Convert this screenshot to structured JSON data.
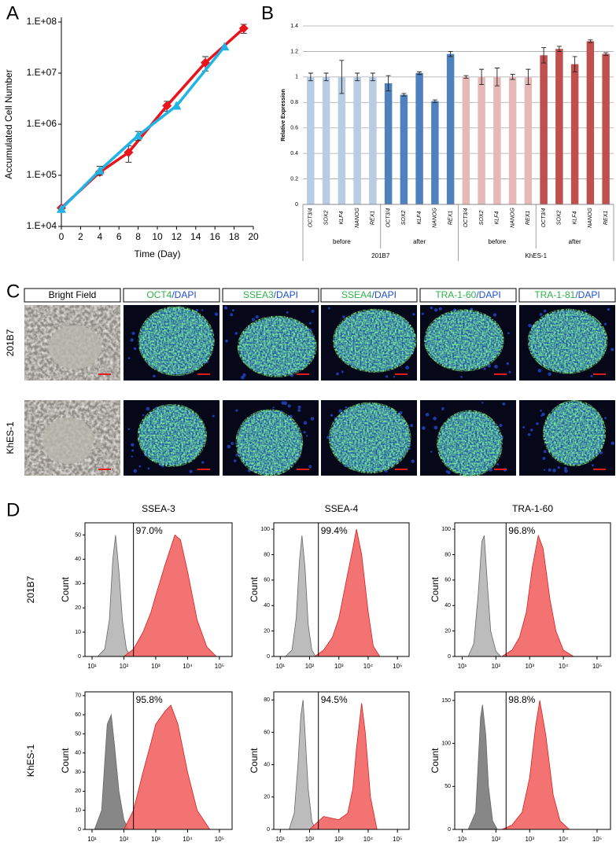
{
  "chart_data": [
    {
      "type": "line",
      "panel": "A",
      "x_label": "Time (Day)",
      "y_label": "Accumulated Cell Number",
      "log_y": true,
      "xlim": [
        0,
        20
      ],
      "xticks": [
        0,
        2,
        4,
        6,
        8,
        10,
        12,
        14,
        16,
        18,
        20
      ],
      "ylim": [
        10000,
        100000000
      ],
      "yticks": [
        {
          "value": 10000,
          "label": "1.E+04"
        },
        {
          "value": 100000,
          "label": "1.E+05"
        },
        {
          "value": 1000000,
          "label": "1.E+06"
        },
        {
          "value": 10000000,
          "label": "1.E+07"
        },
        {
          "value": 100000000,
          "label": "1.E+08"
        }
      ],
      "series": [
        {
          "color": "#e8141c",
          "marker": "diamond",
          "x": [
            0,
            4,
            7,
            11,
            15,
            19
          ],
          "values": [
            23000,
            115000,
            280000,
            2300000,
            16000000,
            75000000
          ],
          "errors": [
            null,
            null,
            100000,
            500000,
            5000000,
            15000000
          ]
        },
        {
          "color": "#1fb4e6",
          "marker": "triangle",
          "x": [
            0,
            4,
            8,
            12,
            17
          ],
          "values": [
            22000,
            125000,
            600000,
            2300000,
            33000000
          ],
          "errors": [
            null,
            25000,
            120000,
            null,
            null
          ]
        }
      ]
    },
    {
      "type": "bar",
      "panel": "B",
      "y_label": "Relative Expression",
      "ylim": [
        0,
        1.4
      ],
      "yticks": [
        0,
        0.2,
        0.4,
        0.6,
        0.8,
        1,
        1.2,
        1.4
      ],
      "grid": true,
      "categories": [
        "OCT3/4",
        "SOX2",
        "KLF4",
        "NANOG",
        "REX1"
      ],
      "groups": [
        {
          "label": "201B7",
          "subgroups": [
            "before",
            "after"
          ]
        },
        {
          "label": "KhES-1",
          "subgroups": [
            "before",
            "after"
          ]
        }
      ],
      "series": [
        {
          "color": "#b8cce4",
          "values": [
            1,
            1,
            1,
            1,
            1
          ],
          "errors": [
            0.03,
            0.03,
            0.13,
            0.03,
            0.03
          ]
        },
        {
          "color": "#4f81bd",
          "values": [
            0.95,
            0.86,
            1.03,
            0.81,
            1.18
          ],
          "errors": [
            0.06,
            0.01,
            0.01,
            0.01,
            0.02
          ]
        },
        {
          "color": "#e6b9b8",
          "values": [
            1,
            1,
            1,
            1,
            1
          ],
          "errors": [
            0.01,
            0.06,
            0.07,
            0.02,
            0.06
          ]
        },
        {
          "color": "#c0504d",
          "values": [
            1.17,
            1.22,
            1.1,
            1.28,
            1.18
          ],
          "errors": [
            0.06,
            0.02,
            0.06,
            0.01,
            0.01
          ]
        }
      ]
    },
    {
      "type": "image_grid",
      "panel": "C",
      "marker_color": "#2db34a",
      "stain_color": "#1f4fd0",
      "rows": [
        "201B7",
        "KhES-1"
      ],
      "columns": [
        {
          "label": "Bright Field"
        },
        {
          "marker": "OCT4",
          "stain": "/DAPI"
        },
        {
          "marker": "SSEA3",
          "stain": "/DAPI"
        },
        {
          "marker": "SSEA4",
          "stain": "/DAPI"
        },
        {
          "marker": "TRA-1-60",
          "stain": "/DAPI"
        },
        {
          "marker": "TRA-1-81",
          "stain": "/DAPI"
        }
      ]
    },
    {
      "type": "flow_histograms",
      "panel": "D",
      "y_label": "Count",
      "columns": [
        "SSEA-3",
        "SSEA-4",
        "TRA-1-60"
      ],
      "rows": [
        "201B7",
        "KhES-1"
      ],
      "xlim": [
        6,
        250000
      ],
      "xticks": [
        {
          "value": 10,
          "label": "10¹"
        },
        {
          "value": 100,
          "label": "10²"
        },
        {
          "value": 1000,
          "label": "10³"
        },
        {
          "value": 10000,
          "label": "10⁴"
        },
        {
          "value": 100000,
          "label": "10⁵"
        }
      ],
      "plots": [
        [
          {
            "ylim": [
              0,
              55
            ],
            "yticks": [
              0,
              10,
              20,
              30,
              40,
              50
            ],
            "gate": 200,
            "values": [
              97.0
            ],
            "value_labels": [
              "97.0%"
            ],
            "series": [
              {
                "color": "#b5b5b5",
                "x": [
                  15,
                  25,
                  35,
                  45,
                  55,
                  70,
                  90,
                  120,
                  160
                ],
                "values": [
                  0,
                  3,
                  15,
                  40,
                  50,
                  35,
                  15,
                  3,
                  0
                ]
              },
              {
                "color": "#f26464",
                "x": [
                  100,
                  200,
                  400,
                  700,
                  1000,
                  2000,
                  4000,
                  6000,
                  10000,
                  20000,
                  40000,
                  80000
                ],
                "values": [
                  0,
                  3,
                  10,
                  18,
                  25,
                  38,
                  50,
                  48,
                  35,
                  15,
                  4,
                  0
                ]
              }
            ]
          },
          {
            "ylim": [
              0,
              105
            ],
            "yticks": [
              0,
              20,
              40,
              60,
              80,
              100
            ],
            "gate": 200,
            "values": [
              99.4
            ],
            "value_labels": [
              "99.4%"
            ],
            "series": [
              {
                "color": "#b5b5b5",
                "x": [
                  15,
                  25,
                  35,
                  45,
                  55,
                  70,
                  90,
                  120,
                  160
                ],
                "values": [
                  0,
                  5,
                  30,
                  75,
                  95,
                  70,
                  25,
                  5,
                  0
                ]
              },
              {
                "color": "#f26464",
                "x": [
                  150,
                  300,
                  600,
                  1000,
                  2000,
                  3000,
                  4000,
                  6000,
                  10000,
                  15000,
                  25000
                ],
                "values": [
                  0,
                  5,
                  15,
                  30,
                  65,
                  85,
                  100,
                  80,
                  35,
                  8,
                  0
                ]
              }
            ]
          },
          {
            "ylim": [
              0,
              105
            ],
            "yticks": [
              0,
              20,
              40,
              60,
              80,
              100
            ],
            "gate": 200,
            "values": [
              96.8
            ],
            "value_labels": [
              "96.8%"
            ],
            "series": [
              {
                "color": "#b5b5b5",
                "x": [
                  15,
                  22,
                  30,
                  38,
                  45,
                  55,
                  70,
                  100,
                  140
                ],
                "values": [
                  0,
                  10,
                  50,
                  90,
                  95,
                  60,
                  20,
                  4,
                  0
                ]
              },
              {
                "color": "#f26464",
                "x": [
                  150,
                  300,
                  500,
                  800,
                  1200,
                  1800,
                  2500,
                  4000,
                  6000,
                  10000,
                  20000
                ],
                "values": [
                  0,
                  5,
                  15,
                  35,
                  70,
                  95,
                  85,
                  45,
                  20,
                  5,
                  0
                ]
              }
            ]
          }
        ],
        [
          {
            "ylim": [
              0,
              72
            ],
            "yticks": [
              0,
              10,
              20,
              30,
              40,
              50,
              60,
              70
            ],
            "gate": 200,
            "values": [
              95.8
            ],
            "value_labels": [
              "95.8%"
            ],
            "series": [
              {
                "color": "#7a7a7a",
                "x": [
                  12,
                  20,
                  25,
                  30,
                  40,
                  50,
                  70,
                  100,
                  140
                ],
                "values": [
                  0,
                  10,
                  35,
                  55,
                  60,
                  45,
                  20,
                  5,
                  0
                ]
              },
              {
                "color": "#f26464",
                "x": [
                  100,
                  200,
                  400,
                  700,
                  1000,
                  2000,
                  3000,
                  5000,
                  10000,
                  20000,
                  50000
                ],
                "values": [
                  0,
                  10,
                  30,
                  45,
                  55,
                  62,
                  65,
                  55,
                  30,
                  10,
                  0
                ]
              }
            ]
          },
          {
            "ylim": [
              0,
              85
            ],
            "yticks": [
              0,
              20,
              40,
              60,
              80
            ],
            "gate": 200,
            "values": [
              94.5
            ],
            "value_labels": [
              "94.5%"
            ],
            "series": [
              {
                "color": "#b5b5b5",
                "x": [
                  20,
                  30,
                  40,
                  50,
                  60,
                  70,
                  90,
                  120,
                  160
                ],
                "values": [
                  0,
                  10,
                  40,
                  70,
                  80,
                  60,
                  25,
                  5,
                  0
                ]
              },
              {
                "color": "#f26464",
                "x": [
                  100,
                  300,
                  1000,
                  2000,
                  3000,
                  4000,
                  6000,
                  8000,
                  12000,
                  20000
                ],
                "values": [
                  0,
                  8,
                  6,
                  10,
                  25,
                  50,
                  78,
                  60,
                  20,
                  0
                ]
              }
            ]
          },
          {
            "ylim": [
              0,
              160
            ],
            "yticks": [
              0,
              50,
              100,
              150
            ],
            "gate": 200,
            "values": [
              98.8
            ],
            "value_labels": [
              "98.8%"
            ],
            "series": [
              {
                "color": "#7a7a7a",
                "x": [
                  15,
                  25,
                  30,
                  35,
                  40,
                  50,
                  60,
                  80,
                  110
                ],
                "values": [
                  0,
                  20,
                  80,
                  130,
                  145,
                  110,
                  50,
                  10,
                  0
                ]
              },
              {
                "color": "#f26464",
                "x": [
                  150,
                  300,
                  600,
                  1000,
                  1500,
                  2000,
                  3000,
                  5000,
                  8000,
                  15000
                ],
                "values": [
                  0,
                  5,
                  20,
                  60,
                  120,
                  150,
                  110,
                  40,
                  10,
                  0
                ]
              }
            ]
          }
        ]
      ]
    }
  ]
}
